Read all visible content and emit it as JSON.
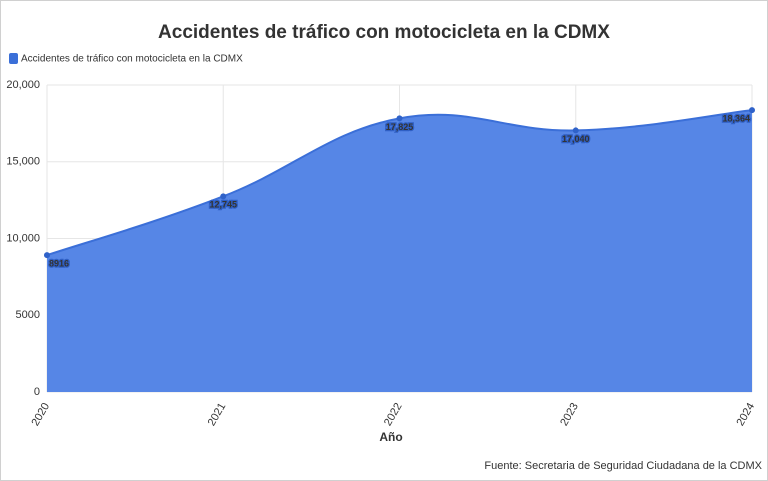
{
  "chart_data": {
    "type": "area",
    "title": "Accidentes de tráfico con motocicleta en la CDMX",
    "x_label": "Año",
    "source": "Fuente: Secretaria de Seguridad Ciudadana de la CDMX",
    "categories": [
      "2020",
      "2021",
      "2022",
      "2023",
      "2024"
    ],
    "series": [
      {
        "name": "Accidentes de tráfico con motocicleta en la CDMX",
        "color": "#3b6fd8",
        "values": [
          8916,
          12745,
          17825,
          17040,
          18364
        ],
        "value_labels": [
          "8916",
          "12,745",
          "17,825",
          "17,040",
          "18,364"
        ]
      }
    ],
    "ylim": [
      0,
      20000
    ],
    "yticks": [
      0,
      5000,
      {
        "value": 10000,
        "label": "10,000"
      },
      {
        "value": 15000,
        "label": "15,000"
      },
      {
        "value": 20000,
        "label": "20,000"
      }
    ],
    "grid": true,
    "legend": "top-left"
  }
}
